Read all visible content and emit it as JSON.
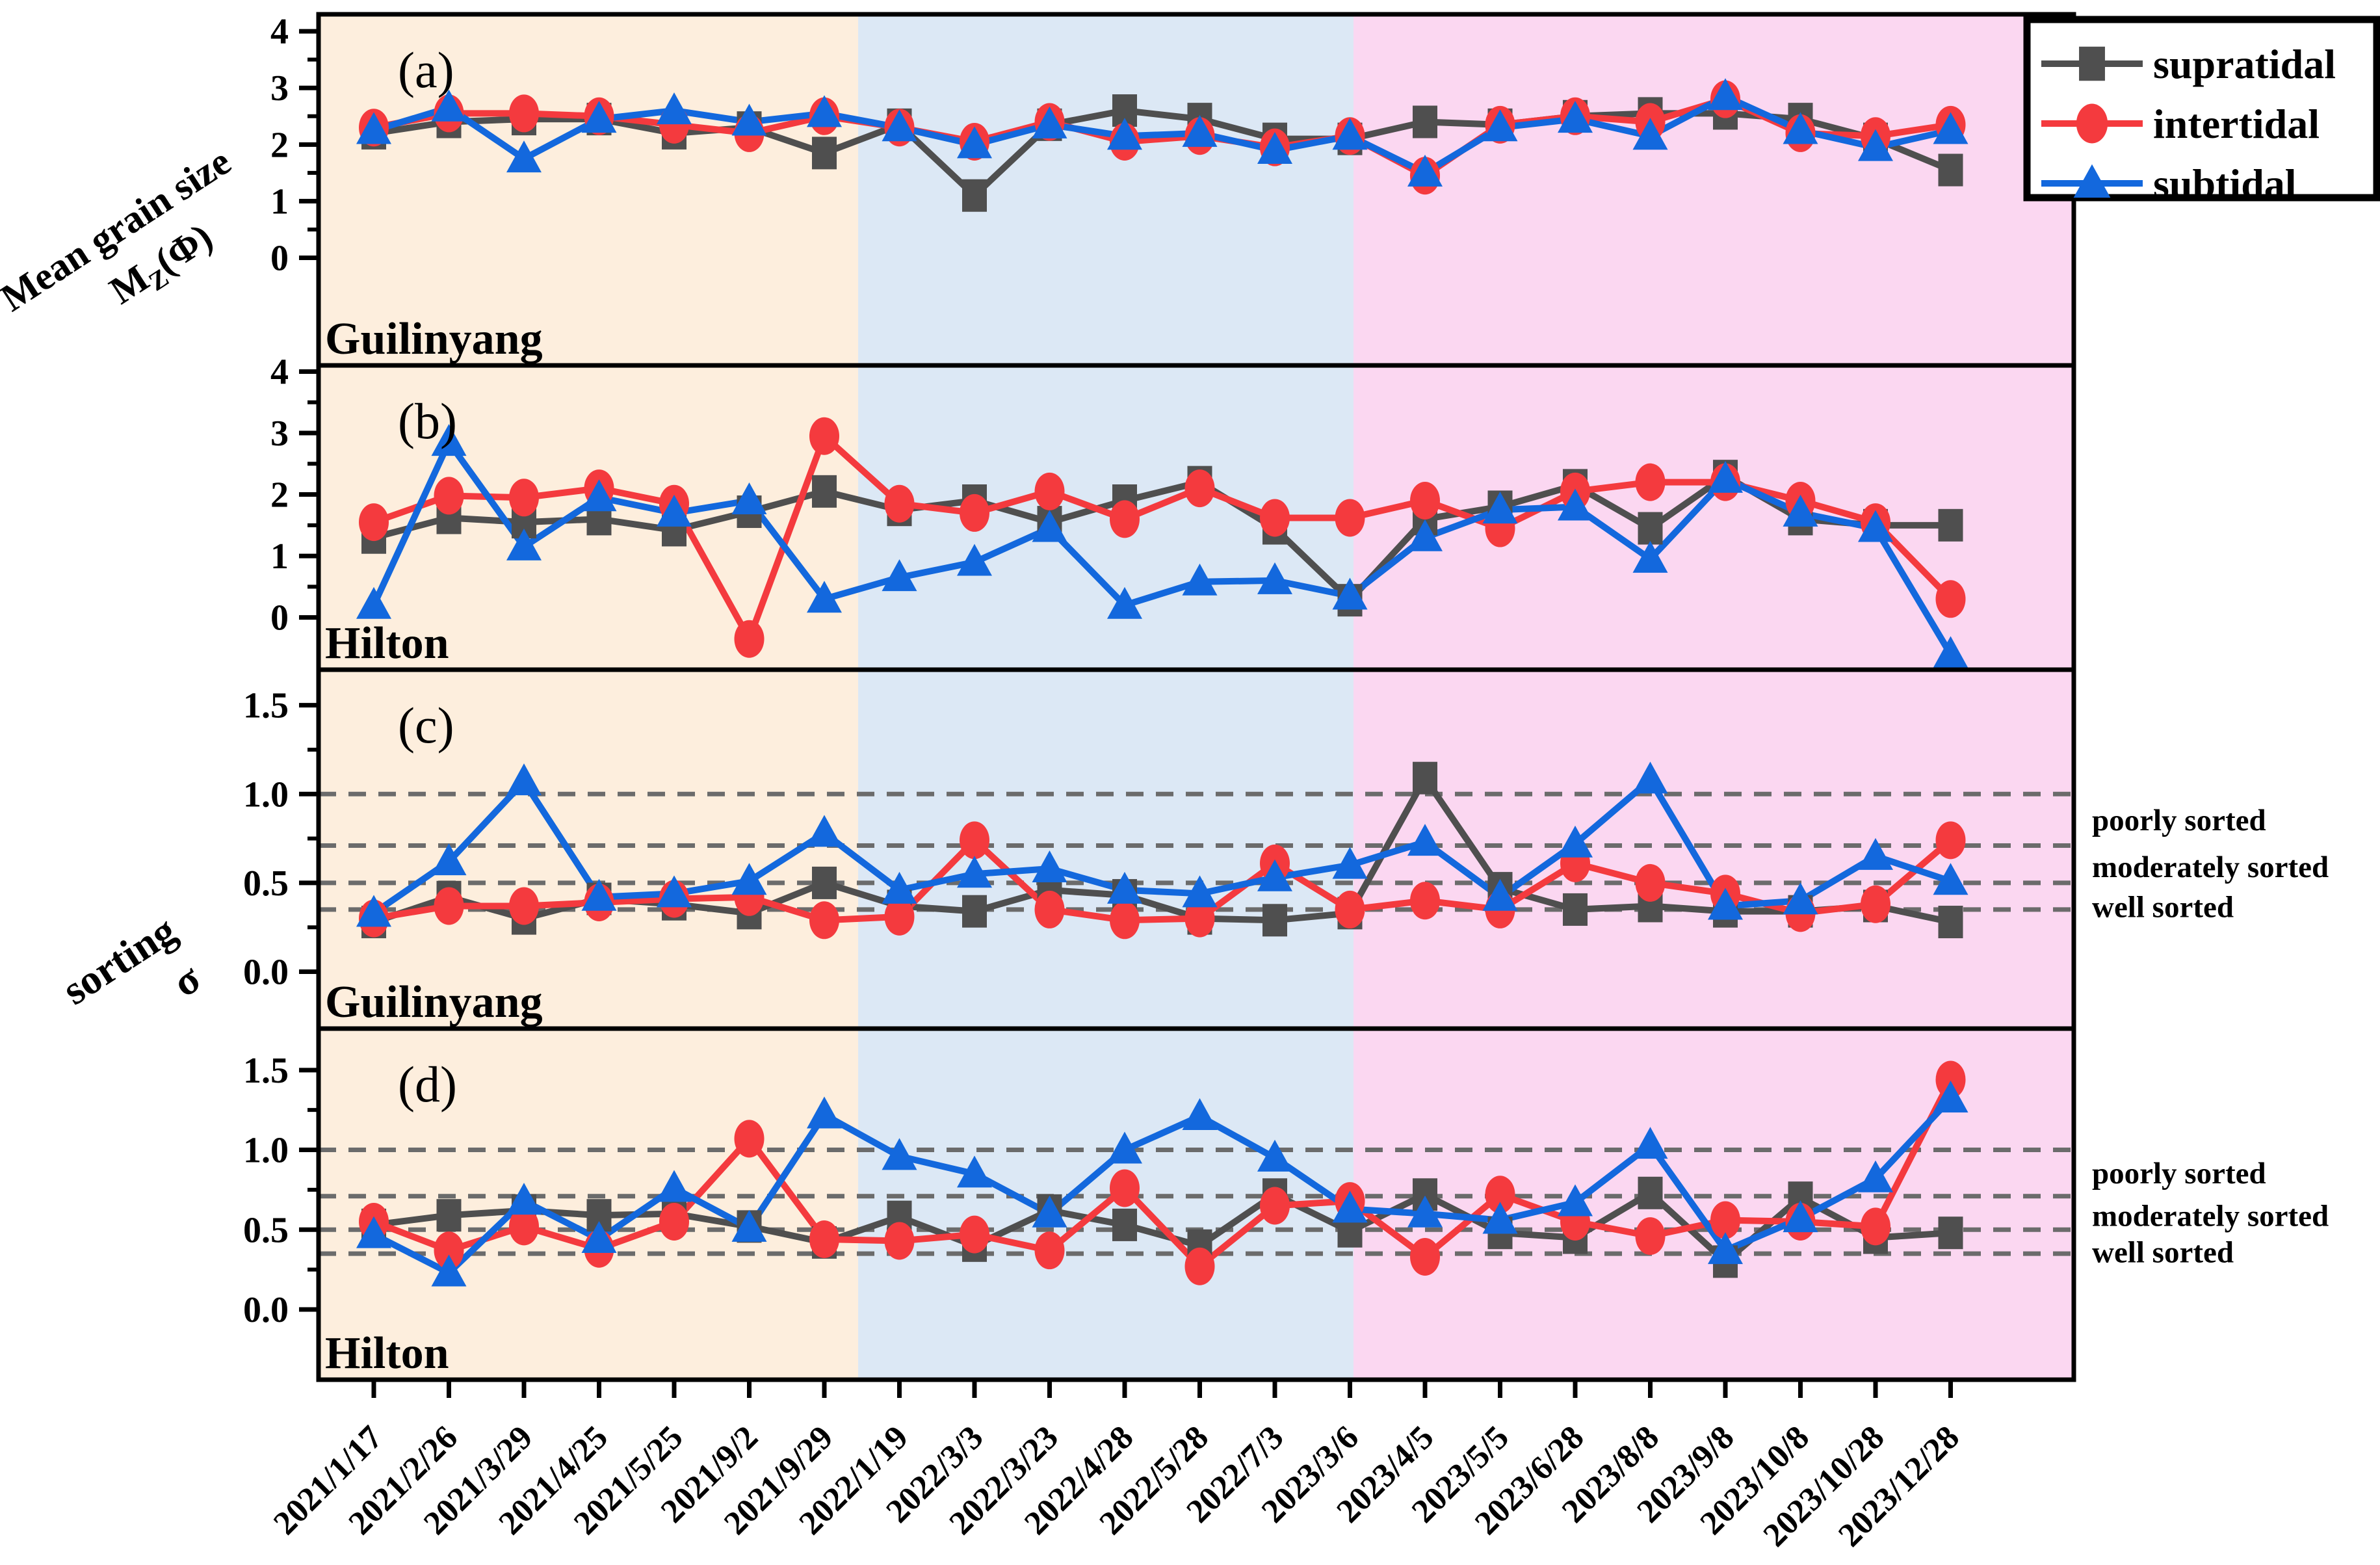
{
  "colors": {
    "supratidal": "#4f4f4f",
    "intertidal": "#f43a3e",
    "subtidal": "#1368dd",
    "zone_2021": "#fdeedd",
    "zone_2022": "#dce8f5",
    "zone_2023": "#fbd7f1",
    "dashed_line": "#6b6b6b",
    "axis": "#000000"
  },
  "legend": {
    "items": [
      {
        "label": "supratidal",
        "marker": "square-icon",
        "color": "#4f4f4f"
      },
      {
        "label": "intertidal",
        "marker": "circle-icon",
        "color": "#f43a3e"
      },
      {
        "label": "subtidal",
        "marker": "triangle-icon",
        "color": "#1368dd"
      }
    ]
  },
  "axis_titles": {
    "grain_line1": "Mean grain size",
    "grain_main": "M",
    "grain_sub": "Z",
    "grain_unit": "(Φ)",
    "sorting_line1": "sorting",
    "sorting_line2": "σ"
  },
  "sorting_class_labels": [
    "poorly sorted",
    "moderately sorted",
    "well sorted"
  ],
  "sorting_dashed_values": [
    1.0,
    0.71,
    0.5,
    0.35
  ],
  "x_dates": [
    "2021/1/17",
    "2021/2/26",
    "2021/3/29",
    "2021/4/25",
    "2021/5/25",
    "2021/9/2",
    "2021/9/29",
    "2022/1/19",
    "2022/3/3",
    "2022/3/23",
    "2022/4/28",
    "2022/5/28",
    "2022/7/3",
    "2023/3/6",
    "2023/4/5",
    "2023/5/5",
    "2023/6/28",
    "2023/8/8",
    "2023/9/8",
    "2023/10/8",
    "2023/10/28",
    "2023/12/28"
  ],
  "zone_breaks": {
    "orange_blue_index": 7.5,
    "blue_pink_index": 13.5
  },
  "chart_data": [
    {
      "type": "line",
      "panel": "(a)",
      "site": "Guilinyang",
      "ylabel": "Mean grain size Mz(Phi)",
      "ylim": [
        -1.9,
        4.3
      ],
      "yticks": [
        0,
        1,
        2,
        3,
        4
      ],
      "minor_yticks": [
        0.5,
        1.5,
        2.5,
        3.5
      ],
      "dashed": false,
      "categories_ref": "x_dates",
      "series": [
        {
          "name": "supratidal",
          "values": [
            2.2,
            2.4,
            2.45,
            2.45,
            2.2,
            2.3,
            1.85,
            2.35,
            1.1,
            2.35,
            2.6,
            2.45,
            2.1,
            2.1,
            2.4,
            2.35,
            2.5,
            2.55,
            2.55,
            2.45,
            2.1,
            1.55
          ]
        },
        {
          "name": "intertidal",
          "values": [
            2.3,
            2.55,
            2.55,
            2.5,
            2.35,
            2.2,
            2.5,
            2.3,
            2.05,
            2.4,
            2.05,
            2.15,
            1.95,
            2.15,
            1.45,
            2.35,
            2.5,
            2.4,
            2.8,
            2.2,
            2.15,
            2.35
          ]
        },
        {
          "name": "subtidal",
          "values": [
            2.25,
            2.65,
            1.75,
            2.45,
            2.6,
            2.4,
            2.55,
            2.3,
            2.0,
            2.35,
            2.15,
            2.2,
            1.9,
            2.15,
            1.5,
            2.3,
            2.45,
            2.15,
            2.85,
            2.25,
            1.95,
            2.25
          ]
        }
      ]
    },
    {
      "type": "line",
      "panel": "(b)",
      "site": "Hilton",
      "ylabel": "Mean grain size Mz(Phi)",
      "ylim": [
        -0.85,
        4.1
      ],
      "yticks": [
        0,
        1,
        2,
        3,
        4
      ],
      "minor_yticks": [
        0.5,
        1.5,
        2.5,
        3.5
      ],
      "dashed": false,
      "categories_ref": "x_dates",
      "series": [
        {
          "name": "supratidal",
          "values": [
            1.3,
            1.62,
            1.55,
            1.6,
            1.42,
            1.72,
            2.05,
            1.75,
            1.9,
            1.55,
            1.9,
            2.2,
            1.45,
            0.28,
            1.6,
            1.8,
            2.15,
            1.45,
            2.3,
            1.6,
            1.5,
            1.5
          ]
        },
        {
          "name": "intertidal",
          "values": [
            1.55,
            1.98,
            1.95,
            2.1,
            1.85,
            -0.35,
            2.95,
            1.85,
            1.7,
            2.05,
            1.6,
            2.1,
            1.62,
            1.62,
            1.9,
            1.45,
            2.05,
            2.2,
            2.2,
            1.9,
            1.55,
            0.3
          ]
        },
        {
          "name": "subtidal",
          "values": [
            0.2,
            2.85,
            1.15,
            1.95,
            1.7,
            1.9,
            0.3,
            0.65,
            0.9,
            1.45,
            0.2,
            0.58,
            0.6,
            0.35,
            1.3,
            1.75,
            1.8,
            0.95,
            2.25,
            1.7,
            1.45,
            -0.6
          ]
        }
      ]
    },
    {
      "type": "line",
      "panel": "(c)",
      "site": "Guilinyang",
      "ylabel": "sorting σ",
      "ylim": [
        -0.32,
        1.7
      ],
      "yticks": [
        0.0,
        0.5,
        1.0,
        1.5
      ],
      "minor_yticks": [
        0.25,
        0.75,
        1.25
      ],
      "dashed": true,
      "categories_ref": "x_dates",
      "series": [
        {
          "name": "supratidal",
          "values": [
            0.28,
            0.42,
            0.3,
            0.41,
            0.38,
            0.33,
            0.5,
            0.37,
            0.34,
            0.46,
            0.43,
            0.3,
            0.29,
            0.33,
            1.09,
            0.47,
            0.35,
            0.37,
            0.34,
            0.34,
            0.37,
            0.28
          ]
        },
        {
          "name": "intertidal",
          "values": [
            0.3,
            0.37,
            0.37,
            0.39,
            0.41,
            0.42,
            0.29,
            0.31,
            0.74,
            0.35,
            0.29,
            0.3,
            0.61,
            0.35,
            0.4,
            0.35,
            0.61,
            0.5,
            0.44,
            0.33,
            0.38,
            0.74
          ]
        },
        {
          "name": "subtidal",
          "values": [
            0.33,
            0.62,
            1.07,
            0.42,
            0.44,
            0.51,
            0.78,
            0.46,
            0.55,
            0.58,
            0.46,
            0.44,
            0.53,
            0.6,
            0.73,
            0.42,
            0.72,
            1.08,
            0.37,
            0.4,
            0.65,
            0.51
          ]
        }
      ]
    },
    {
      "type": "line",
      "panel": "(d)",
      "site": "Hilton",
      "ylabel": "sorting σ",
      "ylim": [
        -0.44,
        1.76
      ],
      "yticks": [
        0.0,
        0.5,
        1.0,
        1.5
      ],
      "minor_yticks": [
        0.25,
        0.75,
        1.25
      ],
      "dashed": true,
      "categories_ref": "x_dates",
      "series": [
        {
          "name": "supratidal",
          "values": [
            0.53,
            0.59,
            0.62,
            0.59,
            0.6,
            0.52,
            0.42,
            0.58,
            0.4,
            0.62,
            0.53,
            0.4,
            0.72,
            0.49,
            0.72,
            0.48,
            0.45,
            0.73,
            0.3,
            0.7,
            0.45,
            0.48
          ]
        },
        {
          "name": "intertidal",
          "values": [
            0.55,
            0.37,
            0.52,
            0.38,
            0.55,
            1.07,
            0.44,
            0.43,
            0.47,
            0.37,
            0.76,
            0.27,
            0.65,
            0.68,
            0.33,
            0.72,
            0.55,
            0.46,
            0.56,
            0.55,
            0.52,
            1.44
          ]
        },
        {
          "name": "subtidal",
          "values": [
            0.47,
            0.23,
            0.68,
            0.44,
            0.76,
            0.51,
            1.22,
            0.96,
            0.85,
            0.6,
            1.0,
            1.21,
            0.95,
            0.63,
            0.6,
            0.56,
            0.67,
            1.03,
            0.37,
            0.57,
            0.82,
            1.32
          ]
        }
      ]
    }
  ]
}
